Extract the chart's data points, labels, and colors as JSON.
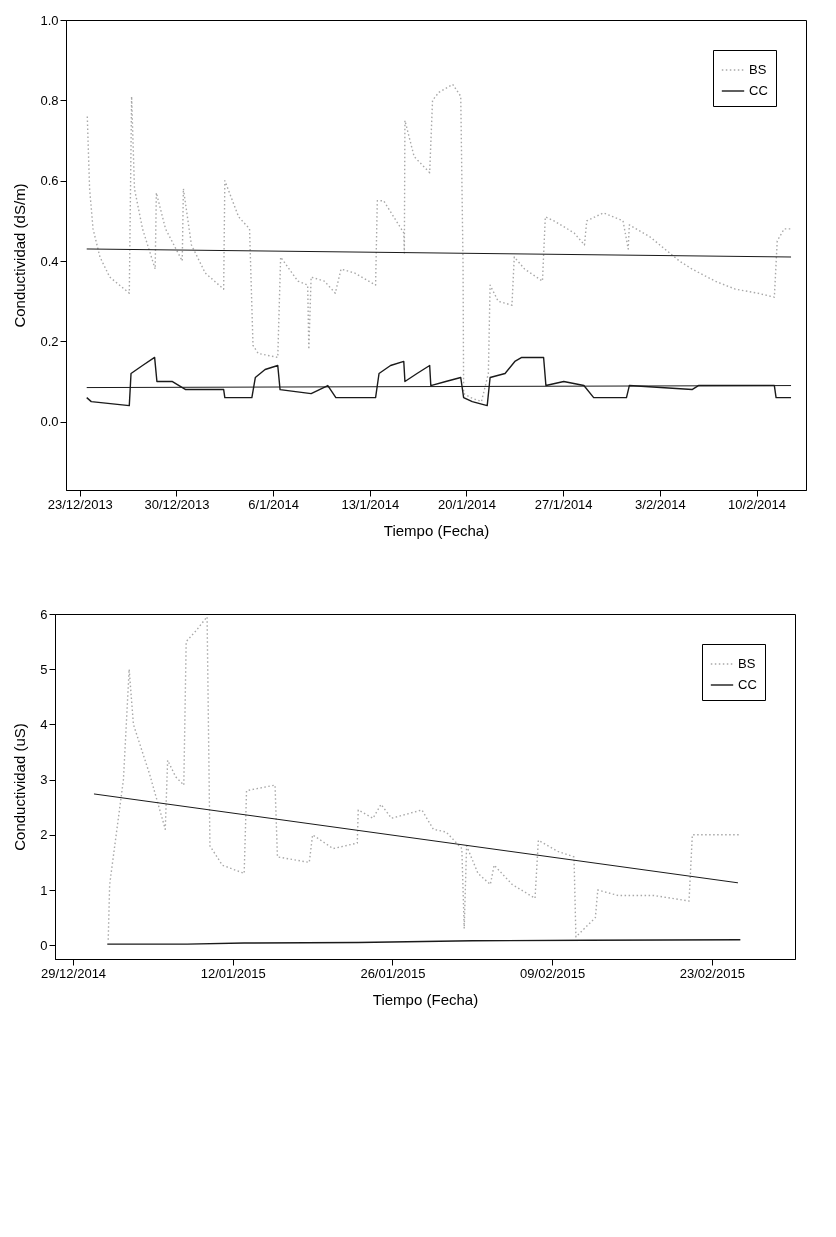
{
  "chart_data": [
    {
      "type": "line",
      "xlabel": "Tiempo (Fecha)",
      "ylabel": "Conductividad (dS/m)",
      "xlim": [
        "2013-12-22",
        "2014-02-13T14:00"
      ],
      "xticks": [
        {
          "value": "2013-12-23",
          "label": "23/12/2013"
        },
        {
          "value": "2013-12-30",
          "label": "30/12/2013"
        },
        {
          "value": "2014-01-06",
          "label": "6/1/2014"
        },
        {
          "value": "2014-01-13",
          "label": "13/1/2014"
        },
        {
          "value": "2014-01-20",
          "label": "20/1/2014"
        },
        {
          "value": "2014-01-27",
          "label": "27/1/2014"
        },
        {
          "value": "2014-02-03",
          "label": "3/2/2014"
        },
        {
          "value": "2014-02-10",
          "label": "10/2/2014"
        }
      ],
      "ylim": [
        -0.17,
        1.0
      ],
      "yticks": [
        {
          "value": 0,
          "label": "0.0"
        },
        0.2,
        0.4,
        0.6,
        0.8,
        {
          "value": 1,
          "label": "1.0"
        }
      ],
      "legend": "top right",
      "series": [
        {
          "name": "BS",
          "color": "#a8a8a8",
          "line_style": "dotted",
          "x": [
            "2013-12-23T13:00",
            "2013-12-23T17:00",
            "2013-12-23T23:00",
            "2013-12-24T11:00",
            "2013-12-25T04:00",
            "2013-12-26T14:00",
            "2013-12-26T18:00",
            "2013-12-26T23:00",
            "2013-12-27T13:00",
            "2013-12-28T11:00",
            "2013-12-28T13:00",
            "2013-12-29T05:00",
            "2013-12-30T10:00",
            "2013-12-30T12:00",
            "2013-12-31T02:00",
            "2014-01-01T02:00",
            "2014-01-02T10:00",
            "2014-01-02T12:00",
            "2014-01-03T12:00",
            "2014-01-04T07:00",
            "2014-01-04T13:00",
            "2014-01-04T22:00",
            "2014-01-06T08:00",
            "2014-01-06T13:00",
            "2014-01-07T19:00",
            "2014-01-08T12:00",
            "2014-01-08T14:00",
            "2014-01-08T18:00",
            "2014-01-09T17:00",
            "2014-01-10T12:00",
            "2014-01-10T22:00",
            "2014-01-11T22:00",
            "2014-01-13T10:00",
            "2014-01-13T13:00",
            "2014-01-14T00:00",
            "2014-01-15T11:00",
            "2014-01-15T12:00",
            "2014-01-15T13:00",
            "2014-01-16T05:00",
            "2014-01-17T08:00",
            "2014-01-17T13:00",
            "2014-01-18T00:00",
            "2014-01-19T00:00",
            "2014-01-19T14:00",
            "2014-01-19T18:00",
            "2014-01-19T19:00",
            "2014-01-20T07:00",
            "2014-01-21T02:00",
            "2014-01-21T14:00",
            "2014-01-21T17:00",
            "2014-01-22T07:00",
            "2014-01-23T07:00",
            "2014-01-23T11:00",
            "2014-01-24T05:00",
            "2014-01-25T12:00",
            "2014-01-25T17:00",
            "2014-01-26T08:00",
            "2014-01-27T19:00",
            "2014-01-28T13:00",
            "2014-01-28T17:00",
            "2014-01-29T22:00",
            "2014-01-31T08:00",
            "2014-01-31T17:00",
            "2014-01-31T19:00",
            "2014-02-02T07:00",
            "2014-02-03T17:00",
            "2014-02-04T10:00",
            "2014-02-05T08:00",
            "2014-02-07T00:00",
            "2014-02-08T11:00",
            "2014-02-10T02:00",
            "2014-02-11T07:00",
            "2014-02-11T12:00",
            "2014-02-12T00:00",
            "2014-02-12T12:00"
          ],
          "values": [
            0.76,
            0.58,
            0.48,
            0.41,
            0.36,
            0.32,
            0.81,
            0.58,
            0.48,
            0.38,
            0.57,
            0.48,
            0.4,
            0.58,
            0.44,
            0.37,
            0.33,
            0.6,
            0.51,
            0.48,
            0.19,
            0.17,
            0.16,
            0.41,
            0.35,
            0.34,
            0.18,
            0.36,
            0.35,
            0.32,
            0.38,
            0.37,
            0.34,
            0.55,
            0.55,
            0.47,
            0.42,
            0.75,
            0.66,
            0.62,
            0.8,
            0.82,
            0.84,
            0.81,
            0.39,
            0.07,
            0.06,
            0.05,
            0.12,
            0.34,
            0.3,
            0.29,
            0.41,
            0.38,
            0.35,
            0.51,
            0.5,
            0.47,
            0.44,
            0.5,
            0.52,
            0.5,
            0.43,
            0.49,
            0.46,
            0.42,
            0.4,
            0.38,
            0.35,
            0.33,
            0.32,
            0.31,
            0.45,
            0.48,
            0.48
          ]
        },
        {
          "name": "CC",
          "color": "#1a1a1a",
          "line_style": "solid",
          "x": [
            "2013-12-23T12:00",
            "2013-12-23T20:00",
            "2013-12-26T14:00",
            "2013-12-26T17:00",
            "2013-12-27T13:00",
            "2013-12-28T10:00",
            "2013-12-28T14:00",
            "2013-12-29T17:00",
            "2013-12-30T16:00",
            "2014-01-02T10:00",
            "2014-01-02T12:00",
            "2014-01-04T11:00",
            "2014-01-04T17:00",
            "2014-01-05T10:00",
            "2014-01-06T08:00",
            "2014-01-06T12:00",
            "2014-01-08T18:00",
            "2014-01-09T23:00",
            "2014-01-10T13:00",
            "2014-01-13T10:00",
            "2014-01-13T16:00",
            "2014-01-14T12:00",
            "2014-01-15T11:00",
            "2014-01-15T13:00",
            "2014-01-16T10:00",
            "2014-01-17T08:00",
            "2014-01-17T10:00",
            "2014-01-18T12:00",
            "2014-01-19T14:00",
            "2014-01-19T19:00",
            "2014-01-20T10:00",
            "2014-01-21T12:00",
            "2014-01-21T17:00",
            "2014-01-22T19:00",
            "2014-01-23T12:00",
            "2014-01-24T00:00",
            "2014-01-25T14:00",
            "2014-01-25T18:00",
            "2014-01-27T01:00",
            "2014-01-28T12:00",
            "2014-01-29T05:00",
            "2014-01-31T14:00",
            "2014-01-31T19:00",
            "2014-02-05T08:00",
            "2014-02-05T19:00",
            "2014-02-11T07:00",
            "2014-02-11T10:00",
            "2014-02-12T12:00"
          ],
          "values": [
            0.06,
            0.05,
            0.04,
            0.12,
            0.14,
            0.16,
            0.1,
            0.1,
            0.08,
            0.08,
            0.06,
            0.06,
            0.11,
            0.13,
            0.14,
            0.08,
            0.07,
            0.09,
            0.06,
            0.06,
            0.12,
            0.14,
            0.15,
            0.1,
            0.12,
            0.14,
            0.09,
            0.1,
            0.11,
            0.06,
            0.05,
            0.04,
            0.11,
            0.12,
            0.15,
            0.16,
            0.16,
            0.09,
            0.1,
            0.09,
            0.06,
            0.06,
            0.09,
            0.08,
            0.09,
            0.09,
            0.06,
            0.06
          ]
        },
        {
          "type": "line",
          "color": "#1a1a1a",
          "x": [
            "2013-12-23T12:00",
            "2014-02-12T12:00"
          ],
          "values": [
            0.43,
            0.41
          ]
        },
        {
          "type": "line",
          "color": "#1a1a1a",
          "x": [
            "2013-12-23T12:00",
            "2014-02-12T12:00"
          ],
          "values": [
            0.085,
            0.09
          ]
        }
      ]
    },
    {
      "type": "line",
      "xlabel": "Tiempo (Fecha)",
      "ylabel": "Conductividad (uS)",
      "xlim": [
        "2014-12-27T10:00",
        "2015-03-02T07:00"
      ],
      "xticks": [
        {
          "value": "2014-12-29",
          "label": "29/12/2014"
        },
        {
          "value": "2015-01-12",
          "label": "12/01/2015"
        },
        {
          "value": "2015-01-26",
          "label": "26/01/2015"
        },
        {
          "value": "2015-02-09",
          "label": "09/02/2015"
        },
        {
          "value": "2015-02-23",
          "label": "23/02/2015"
        }
      ],
      "ylim": [
        -0.25,
        6
      ],
      "yticks": [
        0,
        1,
        2,
        3,
        4,
        5,
        6
      ],
      "legend": "top right",
      "series": [
        {
          "name": "BS",
          "color": "#a8a8a8",
          "line_style": "dotted",
          "x": [
            "2015-01-01T02:00",
            "2015-01-01T05:00",
            "2015-01-02T10:00",
            "2015-01-02T22:00",
            "2015-01-03T07:00",
            "2015-01-04T17:00",
            "2015-01-06T02:00",
            "2015-01-06T07:00",
            "2015-01-07T00:00",
            "2015-01-07T17:00",
            "2015-01-07T22:00",
            "2015-01-08T19:00",
            "2015-01-09T18:00",
            "2015-01-10T00:00",
            "2015-01-11T02:00",
            "2015-01-13T00:00",
            "2015-01-13T05:00",
            "2015-01-15T17:00",
            "2015-01-15T22:00",
            "2015-01-18T17:00",
            "2015-01-19T00:00",
            "2015-01-20T19:00",
            "2015-01-22T22:00",
            "2015-01-23T00:00",
            "2015-01-24T07:00",
            "2015-01-25T00:00",
            "2015-01-25T22:00",
            "2015-01-28T14:00",
            "2015-01-29T14:00",
            "2015-01-30T17:00",
            "2015-02-01T02:00",
            "2015-02-01T07:00",
            "2015-02-01T12:00",
            "2015-02-02T12:00",
            "2015-02-03T14:00",
            "2015-02-03T22:00",
            "2015-02-05T12:00",
            "2015-02-07T12:00",
            "2015-02-07T19:00",
            "2015-02-09T12:00",
            "2015-02-10T22:00",
            "2015-02-11T02:00",
            "2015-02-12T19:00",
            "2015-02-13T00:00",
            "2015-02-14T19:00",
            "2015-02-17T22:00",
            "2015-02-21T00:00",
            "2015-02-21T07:00",
            "2015-02-25T12:00"
          ],
          "values": [
            0.1,
            1.1,
            3.0,
            5.0,
            4.0,
            3.1,
            2.1,
            3.35,
            3.05,
            2.9,
            5.5,
            5.7,
            5.95,
            1.8,
            1.45,
            1.3,
            2.8,
            2.9,
            1.6,
            1.5,
            2.0,
            1.75,
            1.85,
            2.45,
            2.3,
            2.55,
            2.3,
            2.45,
            2.1,
            2.05,
            1.75,
            0.3,
            1.8,
            1.3,
            1.1,
            1.45,
            1.1,
            0.85,
            1.9,
            1.7,
            1.6,
            0.15,
            0.5,
            1.0,
            0.9,
            0.9,
            0.8,
            2.0,
            2.0
          ]
        },
        {
          "name": "CC",
          "color": "#1a1a1a",
          "line_style": "solid",
          "x": [
            "2015-01-01",
            "2015-01-08",
            "2015-01-13",
            "2015-01-23",
            "2015-02-02",
            "2015-02-12",
            "2015-02-25T12:00"
          ],
          "values": [
            0.02,
            0.02,
            0.04,
            0.05,
            0.08,
            0.09,
            0.1
          ]
        },
        {
          "type": "line",
          "color": "#1a1a1a",
          "x": [
            "2014-12-30T20:00",
            "2015-02-25T07:00"
          ],
          "values": [
            2.74,
            1.13
          ]
        }
      ]
    }
  ]
}
